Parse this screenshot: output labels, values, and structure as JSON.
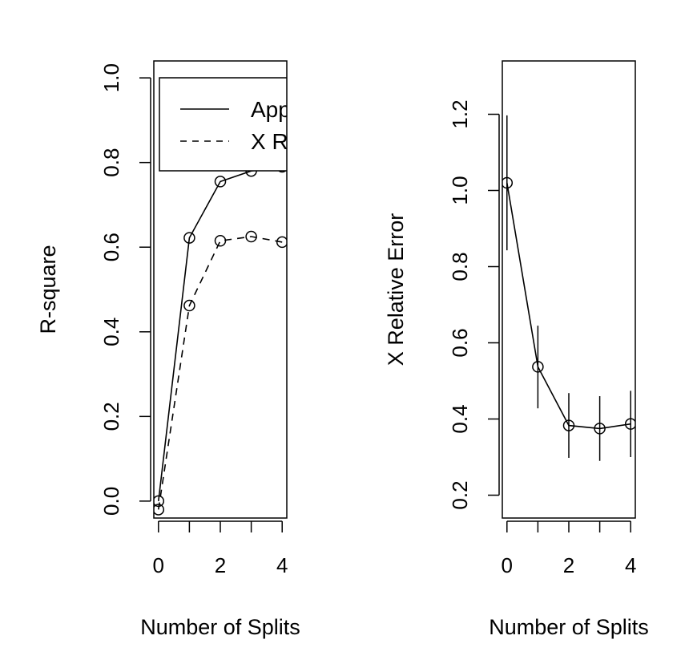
{
  "chart_data": [
    {
      "type": "line",
      "xlabel": "Number of Splits",
      "ylabel": "R-square",
      "xlim": [
        -0.15,
        4.15
      ],
      "ylim": [
        -0.04,
        1.04
      ],
      "x_ticks": [
        "0",
        "2",
        "4"
      ],
      "x_minor_ticks": [
        1,
        3
      ],
      "y_ticks": [
        "0.0",
        "0.2",
        "0.4",
        "0.6",
        "0.8",
        "1.0"
      ],
      "legend": {
        "position": "top-right",
        "clipped": true,
        "entries": [
          "App",
          "X R"
        ]
      },
      "series": [
        {
          "name": "App",
          "line_style": "solid",
          "x": [
            0,
            1,
            2,
            3,
            4
          ],
          "values": [
            0.0,
            0.622,
            0.755,
            0.78,
            0.79
          ]
        },
        {
          "name": "X R",
          "line_style": "dashed",
          "x": [
            0,
            1,
            2,
            3,
            4
          ],
          "values": [
            -0.02,
            0.462,
            0.615,
            0.625,
            0.612
          ]
        }
      ]
    },
    {
      "type": "line",
      "xlabel": "Number of Splits",
      "ylabel": "X Relative Error",
      "xlim": [
        -0.15,
        4.15
      ],
      "ylim": [
        0.14,
        1.34
      ],
      "x_ticks": [
        "0",
        "2",
        "4"
      ],
      "x_minor_ticks": [
        1,
        3
      ],
      "y_ticks": [
        "0.2",
        "0.4",
        "0.6",
        "0.8",
        "1.0",
        "1.2"
      ],
      "series": [
        {
          "line_style": "solid",
          "x": [
            0,
            1,
            2,
            3,
            4
          ],
          "values": [
            1.02,
            0.537,
            0.383,
            0.375,
            0.387
          ],
          "error_low": [
            0.843,
            0.428,
            0.298,
            0.29,
            0.3
          ],
          "error_high": [
            1.197,
            0.645,
            0.468,
            0.46,
            0.474
          ]
        }
      ]
    }
  ]
}
